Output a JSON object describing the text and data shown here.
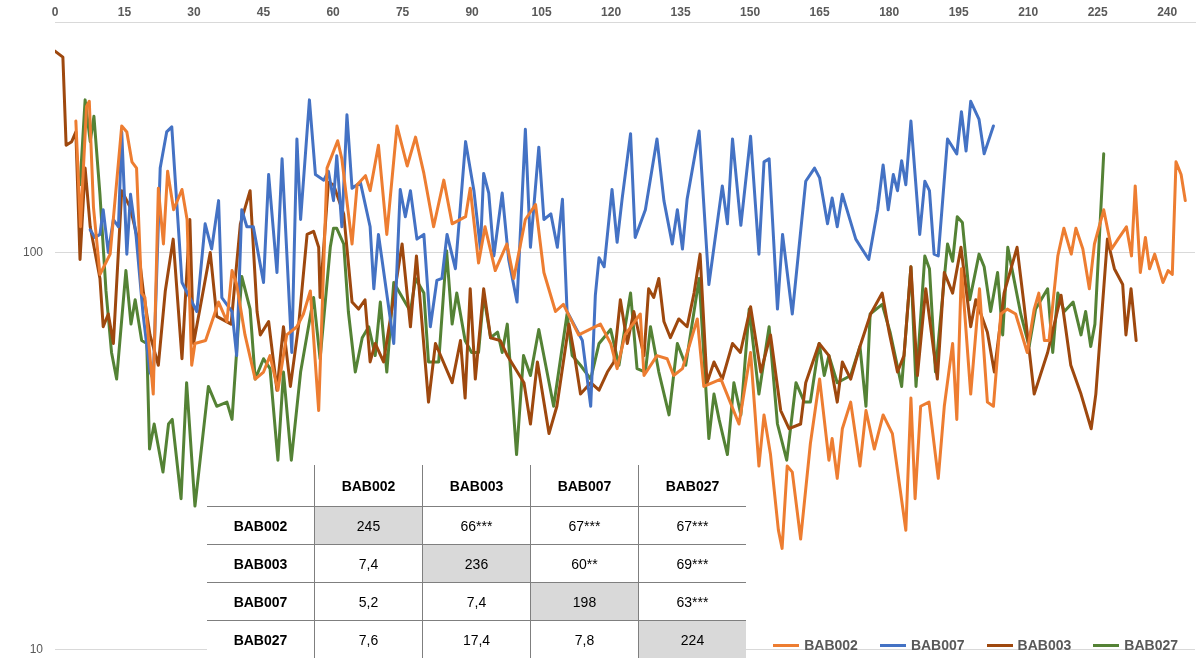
{
  "chart_data": [
    {
      "type": "line",
      "xlim": [
        0,
        246
      ],
      "xticks": [
        0,
        15,
        30,
        45,
        60,
        75,
        90,
        105,
        120,
        135,
        150,
        165,
        180,
        195,
        210,
        225,
        240
      ],
      "ylim": [
        10,
        380
      ],
      "yticks": [
        10,
        100
      ],
      "log": "y",
      "grid": "y",
      "legend": "bottom right",
      "series": [
        {
          "name": "BAB002",
          "color": "#ed7d31",
          "x": [
            4.5,
            5.5,
            6.8,
            7.4,
            8.3,
            9.7,
            11.9,
            14.4,
            15.5,
            16.6,
            17.6,
            18.7,
            19.4,
            21.2,
            22.3,
            23.4,
            24.3,
            25.6,
            27.4,
            28.5,
            29.5,
            30.2,
            32.5,
            35.3,
            37.1,
            38.2,
            39.2,
            41,
            43.2,
            45,
            46.4,
            48.1,
            50,
            52.2,
            53.6,
            55.1,
            56.9,
            58.7,
            61,
            61.9,
            64.1,
            65.2,
            67,
            68,
            69.8,
            71.6,
            73.8,
            76,
            77.8,
            79.6,
            81.7,
            83.9,
            85.7,
            88.6,
            89.6,
            91.4,
            92.8,
            95,
            97.5,
            99,
            101.5,
            103.7,
            105.5,
            108,
            109.7,
            113,
            117.7,
            119.9,
            121.3,
            123,
            126.3,
            127.1,
            129.9,
            132.1,
            133.5,
            135.4,
            138.6,
            140,
            143.7,
            147.6,
            150.1,
            151.9,
            153,
            154.4,
            156.1,
            156.9,
            158,
            159.1,
            160.9,
            163,
            165,
            167,
            167.7,
            168.8,
            169.9,
            171.7,
            173.7,
            175,
            176.8,
            178.7,
            180.7,
            183.6,
            184.7,
            185.6,
            186.8,
            188.6,
            190.6,
            191.9,
            193.7,
            194.6,
            195.6,
            197.6,
            199.5,
            201.2,
            202.5,
            204.1,
            205.5,
            207.3,
            209.8,
            211.3,
            212.3,
            213.5,
            214.5,
            216.4,
            217.7,
            219.3,
            220.3,
            221.8,
            223.2,
            224.3,
            226.3,
            228,
            229.4,
            231.2,
            232.3,
            233.1,
            234.2,
            235.3,
            236.2,
            237.3,
            239.1,
            240.2,
            241.1,
            241.9,
            243,
            243.9
          ],
          "values": [
            214,
            116,
            233,
            240,
            130,
            88,
            99,
            208,
            201,
            169,
            163,
            79,
            77,
            44,
            145,
            105,
            160,
            128,
            144,
            121,
            52,
            59,
            60,
            75,
            67,
            90,
            83,
            62,
            48,
            50,
            55,
            45,
            62,
            65,
            70,
            80,
            40,
            163,
            191,
            172,
            105,
            148,
            156,
            143,
            186,
            111,
            208,
            165,
            195,
            158,
            116,
            152,
            118,
            123,
            145,
            94,
            116,
            90,
            105,
            86,
            121,
            132,
            89,
            71,
            74,
            62,
            66,
            59,
            51,
            62,
            70,
            49,
            55,
            54,
            49,
            51,
            68,
            46,
            48,
            37,
            56,
            29,
            39,
            31,
            20,
            18,
            29,
            28,
            19,
            33,
            48,
            30,
            34,
            27,
            36,
            42,
            29,
            40,
            32,
            39,
            35,
            20,
            43,
            24,
            41,
            42,
            27,
            41,
            59,
            38,
            91,
            44,
            81,
            42,
            41,
            70,
            72,
            70,
            56,
            72,
            79,
            60,
            60,
            98,
            115,
            99,
            115,
            102,
            81,
            105,
            128,
            102,
            108,
            116,
            98,
            147,
            89,
            109,
            91,
            99,
            84,
            90,
            88,
            169,
            157,
            135
          ]
        },
        {
          "name": "BAB007",
          "color": "#4472c4",
          "x": [
            7.6,
            8.6,
            9.7,
            10.4,
            11.5,
            12.6,
            13.7,
            14.4,
            15.5,
            16.3,
            17.5,
            19,
            20.5,
            21.2,
            22.7,
            24.1,
            25.2,
            27.4,
            30.6,
            32.4,
            33.8,
            35.3,
            36,
            38.2,
            39.2,
            40.3,
            41.4,
            42.8,
            45,
            46.1,
            47.9,
            49,
            51.1,
            52.2,
            53,
            54.9,
            56.2,
            58,
            59,
            60.1,
            60.8,
            61.9,
            63,
            64.1,
            65.9,
            68,
            68.8,
            69.8,
            73.1,
            74.5,
            75.6,
            76.7,
            78.1,
            79.6,
            81,
            82.4,
            83.5,
            84.6,
            86.4,
            88.6,
            90.4,
            91.8,
            92.5,
            93.6,
            94.7,
            96.5,
            97.9,
            99.7,
            101.5,
            102.6,
            104.4,
            105.5,
            107,
            108.4,
            109.5,
            110.5,
            113.8,
            115.6,
            116.6,
            117.4,
            118.5,
            120.2,
            121.3,
            122.4,
            124.2,
            125.2,
            127.4,
            129.9,
            131.4,
            133.2,
            134.3,
            135.4,
            136.4,
            139,
            141.1,
            144,
            145.1,
            146.2,
            148,
            150.1,
            151.9,
            153,
            154.1,
            155.9,
            157,
            159.1,
            162,
            163.9,
            165,
            166.7,
            167.7,
            168.8,
            169.9,
            172.8,
            173.9,
            175.6,
            177.5,
            178.7,
            179.8,
            180.9,
            181.8,
            182.7,
            183.6,
            184.7,
            186.6,
            187.7,
            188.7,
            189.7,
            190.6,
            192.6,
            194.6,
            195.6,
            196.6,
            197.6,
            199.4,
            200.5,
            202.5
          ],
          "values": [
            114,
            109,
            111,
            128,
            100,
            121,
            116,
            201,
            99,
            140,
            110,
            70,
            50,
            48,
            163,
            201,
            207,
            84,
            71,
            118,
            102,
            135,
            77,
            71,
            55,
            128,
            116,
            116,
            84,
            157,
            89,
            172,
            56,
            193,
            121,
            242,
            157,
            152,
            160,
            135,
            175,
            116,
            222,
            145,
            150,
            116,
            81,
            111,
            59,
            144,
            123,
            143,
            108,
            111,
            65,
            85,
            86,
            111,
            91,
            190,
            143,
            102,
            158,
            141,
            98,
            141,
            96,
            75,
            204,
            103,
            184,
            121,
            125,
            103,
            136,
            71,
            60,
            41,
            78,
            97,
            92,
            144,
            106,
            137,
            199,
            109,
            128,
            193,
            135,
            105,
            128,
            102,
            136,
            202,
            83,
            147,
            118,
            193,
            117,
            196,
            99,
            169,
            172,
            72,
            111,
            70,
            151,
            163,
            154,
            118,
            137,
            116,
            140,
            108,
            103,
            96,
            128,
            166,
            128,
            157,
            143,
            170,
            148,
            214,
            111,
            151,
            143,
            99,
            98,
            193,
            177,
            226,
            180,
            240,
            216,
            177,
            208
          ]
        },
        {
          "name": "BAB003",
          "color": "#9e480e",
          "x": [
            0,
            1.7,
            2.4,
            3.6,
            4.5,
            5.4,
            6.5,
            7.6,
            9.7,
            10.4,
            11.5,
            12.6,
            14.4,
            16.2,
            17.6,
            19.1,
            20.5,
            22.3,
            23.8,
            25.5,
            27.4,
            29.1,
            29.9,
            33.5,
            34.9,
            38,
            40,
            42.1,
            43.6,
            44.3,
            46.1,
            47.9,
            49.3,
            50.8,
            52.6,
            54.4,
            55.8,
            56.9,
            57.2,
            59,
            60.1,
            62.3,
            64.1,
            65.5,
            66.9,
            68,
            69.1,
            70.9,
            74.9,
            76.7,
            78,
            80.6,
            82.1,
            85.7,
            87.5,
            88.5,
            89.6,
            90.7,
            92.5,
            94,
            96.1,
            97.6,
            101.2,
            102.6,
            104.1,
            106.6,
            108.3,
            110.9,
            112,
            113.4,
            115.6,
            117.4,
            119.2,
            120.6,
            122,
            123.5,
            124.9,
            127.1,
            128.1,
            129.2,
            130.3,
            131.4,
            132.8,
            134.6,
            136.4,
            137.9,
            139.2,
            140.7,
            142.2,
            144,
            146.2,
            147.9,
            150.1,
            152.3,
            154.4,
            156.6,
            158.4,
            160.9,
            162,
            164.9,
            167,
            168.8,
            169.9,
            171.7,
            173.7,
            176,
            178.5,
            180,
            181.8,
            183.2,
            184.7,
            186.1,
            187.9,
            190.4,
            191.9,
            193.7,
            195.5,
            197.6,
            198.7,
            201.2,
            202.7,
            204.8,
            207.6,
            209.1,
            211.3,
            214.2,
            217.1,
            219.2,
            221.4,
            223.6,
            224.6,
            227.1,
            228.6,
            230.4,
            231.1,
            232.2,
            233.3
          ],
          "values": [
            321,
            310,
            186,
            190,
            201,
            96,
            163,
            116,
            86,
            65,
            70,
            59,
            143,
            130,
            111,
            79,
            62,
            52,
            80,
            108,
            54,
            121,
            59,
            100,
            69,
            66,
            118,
            143,
            71,
            62,
            67,
            45,
            65,
            46,
            66,
            111,
            113,
            103,
            77,
            150,
            148,
            125,
            75,
            72,
            76,
            53,
            59,
            53,
            105,
            65,
            98,
            42,
            59,
            47,
            60,
            43,
            81,
            48,
            81,
            61,
            60,
            55,
            47,
            37,
            53,
            35,
            41,
            66,
            56,
            44,
            47,
            45,
            50,
            53,
            76,
            59,
            71,
            55,
            81,
            77,
            86,
            67,
            61,
            68,
            65,
            79,
            99,
            47,
            53,
            48,
            59,
            56,
            73,
            50,
            62,
            40,
            36,
            37,
            47,
            59,
            55,
            42,
            53,
            48,
            58,
            70,
            79,
            63,
            50,
            55,
            92,
            49,
            81,
            48,
            89,
            79,
            103,
            65,
            76,
            63,
            50,
            79,
            103,
            74,
            44,
            56,
            78,
            52,
            44,
            36,
            44,
            108,
            91,
            83,
            62,
            81,
            60
          ]
        },
        {
          "name": "BAB027",
          "color": "#548235",
          "x": [
            5.4,
            6.5,
            7.6,
            8.4,
            9.7,
            11,
            12.2,
            13.3,
            15.3,
            16.4,
            17.3,
            18.7,
            19.8,
            20.4,
            21.4,
            23.3,
            24.5,
            25.3,
            27.2,
            28.4,
            30.2,
            33.1,
            34.9,
            37.1,
            38.2,
            40.3,
            42.1,
            43.2,
            45,
            46.4,
            48.1,
            49.3,
            51,
            53,
            55.8,
            57.2,
            59.4,
            60.1,
            60.8,
            62.3,
            63.3,
            64.8,
            66.3,
            67.7,
            69.1,
            70.2,
            71.6,
            73.1,
            76.7,
            77.8,
            79.6,
            80.6,
            82.8,
            84.5,
            85.7,
            86.7,
            88.5,
            89.9,
            91.4,
            92.5,
            94,
            95.5,
            96.5,
            97.6,
            99.6,
            101.1,
            102.6,
            104.4,
            107.6,
            110.5,
            111.6,
            113.4,
            115.6,
            117.4,
            119.9,
            121.7,
            124.2,
            125.6,
            127.4,
            128.5,
            130.3,
            132.5,
            134.3,
            136.1,
            139,
            141.1,
            142.2,
            143.3,
            145.1,
            146.5,
            148,
            149.8,
            151.9,
            154.1,
            155.9,
            157.9,
            159.9,
            161.7,
            163,
            164.9,
            166,
            167,
            168.8,
            171.7,
            173.7,
            175,
            175.9,
            178.5,
            180.2,
            182.7,
            184.7,
            185.8,
            187.7,
            188.7,
            190,
            192.6,
            193.7,
            194.7,
            195.8,
            197.4,
            199.4,
            200.5,
            201.9,
            203.4,
            204.5,
            205.6,
            208.4,
            210.2,
            211.6,
            214.2,
            215.3,
            216.4,
            217.8,
            219.7,
            221.4,
            222.4,
            223.5,
            224.4,
            226.3
          ],
          "values": [
            148,
            242,
            190,
            220,
            140,
            80,
            56,
            48,
            90,
            66,
            76,
            60,
            59,
            32,
            37,
            28,
            37,
            38,
            24,
            47,
            23,
            46,
            41,
            42,
            38,
            87,
            72,
            48,
            54,
            51,
            30,
            50,
            30,
            50,
            77,
            54,
            103,
            115,
            115,
            105,
            71,
            50,
            61,
            65,
            55,
            75,
            50,
            84,
            71,
            86,
            79,
            53,
            53,
            101,
            66,
            79,
            60,
            56,
            56,
            78,
            61,
            63,
            56,
            66,
            31,
            55,
            49,
            64,
            41,
            70,
            55,
            52,
            48,
            59,
            64,
            52,
            79,
            51,
            50,
            65,
            50,
            39,
            59,
            52,
            86,
            34,
            44,
            38,
            31,
            47,
            39,
            72,
            44,
            65,
            37,
            30,
            47,
            42,
            42,
            59,
            49,
            55,
            47,
            49,
            58,
            41,
            70,
            74,
            63,
            46,
            92,
            46,
            98,
            91,
            50,
            105,
            95,
            123,
            119,
            76,
            99,
            92,
            71,
            89,
            62,
            103,
            70,
            58,
            72,
            81,
            56,
            79,
            71,
            75,
            62,
            71,
            58,
            66,
            177
          ]
        }
      ]
    },
    {
      "type": "other",
      "categories": [
        "BAB002",
        "BAB003",
        "BAB007",
        "BAB027"
      ],
      "y_categories": [
        "BAB002",
        "BAB003",
        "BAB007",
        "BAB027"
      ],
      "cell_labels": [
        [
          "245",
          "66***",
          "67***",
          "67***"
        ],
        [
          "7,4",
          "236",
          "60**",
          "69***"
        ],
        [
          "5,2",
          "7,4",
          "198",
          "63***"
        ],
        [
          "7,6",
          "17,4",
          "7,8",
          "224"
        ]
      ]
    }
  ]
}
